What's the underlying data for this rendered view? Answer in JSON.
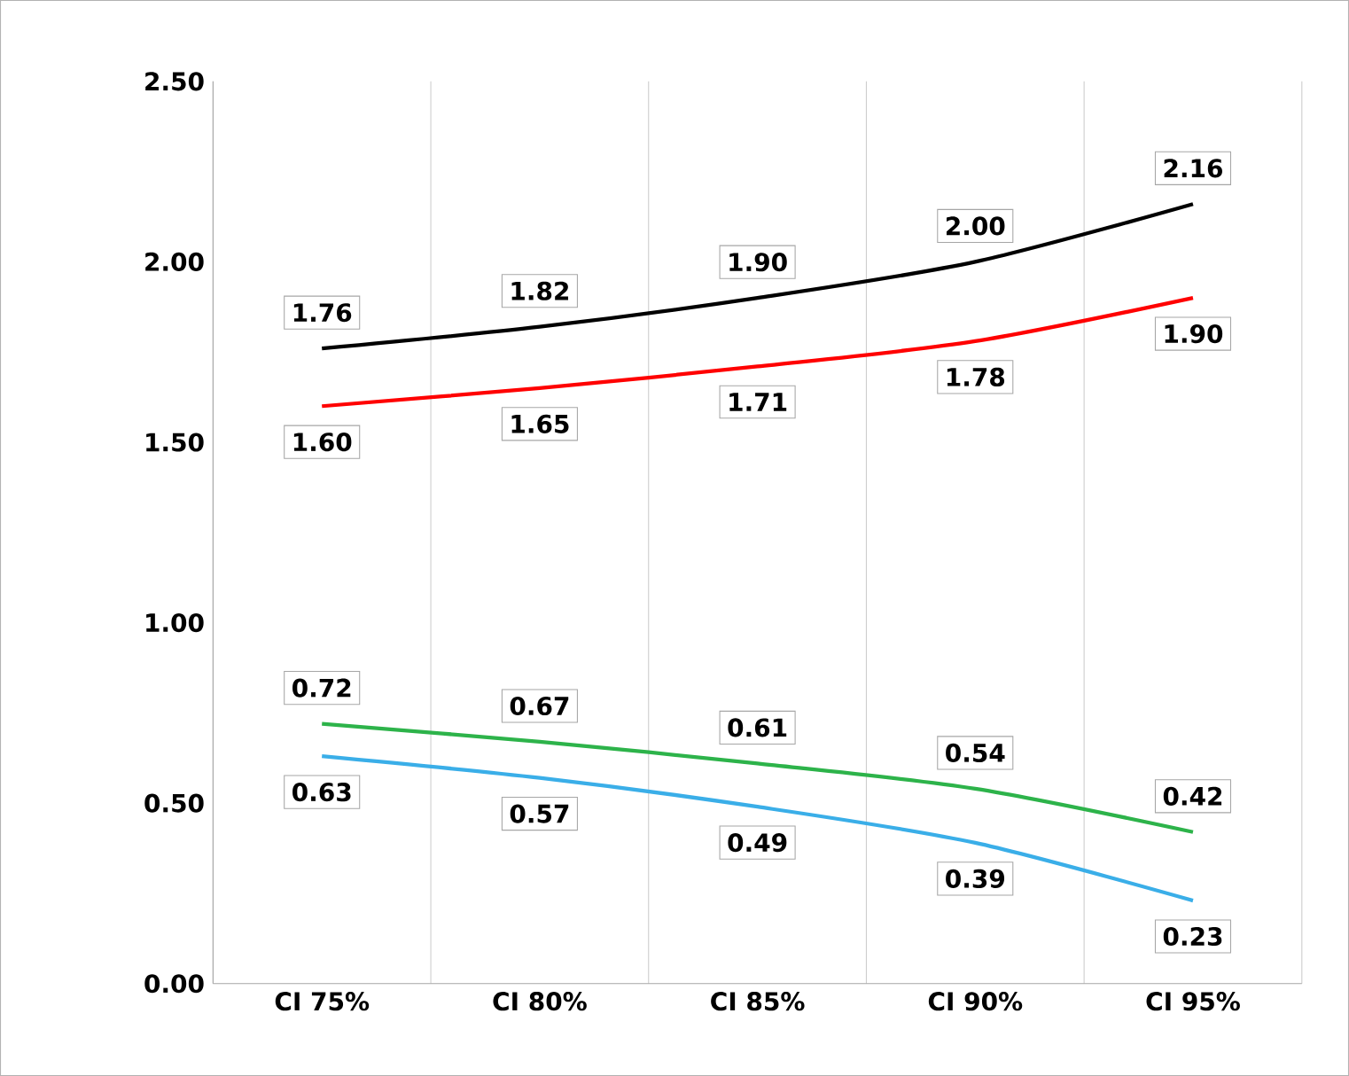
{
  "chart_data": {
    "type": "line",
    "categories": [
      "CI 75%",
      "CI 80%",
      "CI 85%",
      "CI 90%",
      "CI 95%"
    ],
    "ylim": [
      0,
      2.5
    ],
    "yticks": [
      {
        "value": 0,
        "label": "0.00"
      },
      {
        "value": 0.5,
        "label": "0.50"
      },
      {
        "value": 1,
        "label": "1.00"
      },
      {
        "value": 1.5,
        "label": "1.50"
      },
      {
        "value": 2,
        "label": "2.00"
      },
      {
        "value": 2.5,
        "label": "2.50"
      }
    ],
    "grid": "x",
    "series": [
      {
        "color": "#000000",
        "values": [
          1.76,
          1.82,
          1.9,
          2.0,
          2.16
        ],
        "value_labels": [
          "1.76",
          "1.82",
          "1.90",
          "2.00",
          "2.16"
        ]
      },
      {
        "color": "#ff0000",
        "values": [
          1.6,
          1.65,
          1.71,
          1.78,
          1.9
        ],
        "value_labels": [
          "1.60",
          "1.65",
          "1.71",
          "1.78",
          "1.90"
        ]
      },
      {
        "color": "#2db34a",
        "values": [
          0.72,
          0.67,
          0.61,
          0.54,
          0.42
        ],
        "value_labels": [
          "0.72",
          "0.67",
          "0.61",
          "0.54",
          "0.42"
        ]
      },
      {
        "color": "#3aaee8",
        "values": [
          0.63,
          0.57,
          0.49,
          0.39,
          0.23
        ],
        "value_labels": [
          "0.63",
          "0.57",
          "0.49",
          "0.39",
          "0.23"
        ]
      }
    ]
  }
}
